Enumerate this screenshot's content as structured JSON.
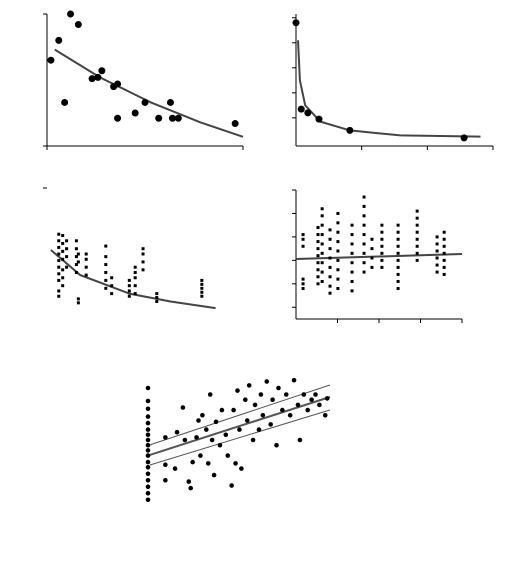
{
  "chart_data": [
    {
      "type": "scatter",
      "color": "#000000",
      "marker": "circle",
      "marker_size": 3.5,
      "axes": true,
      "fit_color": "#444444",
      "xlim": [
        0,
        10
      ],
      "ylim": [
        0,
        10
      ],
      "xticks": [
        0,
        10
      ],
      "yticks": [
        0,
        10
      ],
      "x": [
        0.2,
        0.6,
        0.9,
        1.2,
        1.6,
        2.3,
        2.6,
        2.8,
        3.4,
        3.6,
        3.6,
        4.5,
        5.0,
        5.7,
        6.3,
        6.4,
        6.7,
        9.6
      ],
      "values": [
        6.5,
        8.0,
        3.3,
        10.0,
        9.2,
        5.1,
        5.2,
        5.7,
        4.5,
        4.7,
        2.1,
        2.5,
        3.3,
        2.1,
        3.3,
        2.1,
        2.1,
        1.7
      ],
      "fits": [
        {
          "x": [
            0.4,
            2.7,
            5.3,
            7.8,
            10
          ],
          "values": [
            7.3,
            5.2,
            3.3,
            1.8,
            0.7
          ]
        }
      ]
    },
    {
      "type": "scatter",
      "color": "#000000",
      "marker": "circle",
      "marker_size": 3.5,
      "axes": true,
      "fit_color": "#444444",
      "xlim": [
        0,
        3
      ],
      "ylim": [
        -0.25,
        10.3
      ],
      "xticks": [
        1,
        2,
        3
      ],
      "yticks": [
        2,
        4,
        6,
        8,
        10
      ],
      "x": [
        0,
        0.08,
        0.18,
        0.35,
        0.82,
        2.56
      ],
      "values": [
        9.6,
        2.7,
        2.4,
        1.9,
        1.0,
        0.4
      ],
      "fits": [
        {
          "x": [
            0.03,
            0.06,
            0.14,
            0.37,
            0.82,
            1.59,
            2.81
          ],
          "values": [
            8.2,
            5.0,
            3.0,
            1.7,
            1.0,
            0.6,
            0.5
          ]
        }
      ]
    },
    {
      "type": "scatter",
      "color": "#000000",
      "marker": "square",
      "marker_size": 1.5,
      "axes": false,
      "fit_color": "#444444",
      "xlim": [
        0,
        10
      ],
      "ylim": [
        0,
        10
      ],
      "yticks": [
        10
      ],
      "x": [
        0.6,
        0.6,
        0.6,
        0.6,
        0.6,
        0.6,
        0.6,
        0.6,
        0.6,
        0.6,
        0.8,
        0.8,
        0.8,
        0.8,
        0.8,
        0.8,
        0.8,
        1.0,
        1.0,
        1.0,
        1.0,
        1.5,
        1.5,
        1.5,
        1.5,
        1.5,
        1.6,
        1.6,
        1.6,
        1.6,
        2.0,
        2.0,
        2.0,
        2.0,
        3.0,
        3.0,
        3.0,
        3.0,
        3.0,
        3.0,
        3.3,
        3.3,
        3.3,
        4.2,
        4.2,
        4.2,
        4.2,
        4.5,
        4.5,
        4.5,
        4.5,
        4.5,
        4.9,
        4.9,
        4.9,
        4.9,
        5.6,
        5.6,
        5.6,
        7.9,
        7.9,
        7.9,
        7.9,
        7.9
      ],
      "values": [
        3.0,
        3.5,
        4.0,
        4.5,
        5.0,
        5.5,
        6.0,
        6.5,
        2.2,
        1.8,
        3.2,
        3.8,
        4.6,
        5.2,
        5.8,
        6.4,
        2.6,
        4.0,
        4.8,
        5.4,
        6.0,
        3.6,
        4.2,
        4.8,
        5.4,
        6.0,
        1.3,
        1.6,
        4.4,
        5.0,
        3.4,
        4.0,
        4.6,
        5.0,
        2.4,
        3.0,
        3.6,
        4.2,
        4.8,
        5.6,
        2.0,
        2.6,
        3.2,
        1.8,
        2.2,
        2.6,
        3.0,
        2.0,
        2.6,
        3.2,
        3.6,
        4.0,
        3.8,
        4.4,
        5.0,
        5.4,
        1.4,
        1.7,
        2.0,
        1.8,
        2.1,
        2.4,
        2.7,
        3.0
      ],
      "fits": [
        {
          "x": [
            0.2,
            1.7,
            4.2,
            6.3,
            8.6
          ],
          "values": [
            5.3,
            3.4,
            2.0,
            1.4,
            0.9
          ]
        }
      ]
    },
    {
      "type": "scatter",
      "color": "#000000",
      "marker": "square",
      "marker_size": 1.5,
      "axes": true,
      "fit_color": "#444444",
      "xlim": [
        0,
        4
      ],
      "ylim": [
        0,
        5.5
      ],
      "xticks": [
        1,
        2,
        3,
        4
      ],
      "yticks": [
        0.5,
        1.5,
        2.5,
        3.5,
        4.5,
        5.5
      ],
      "x": [
        0.17,
        0.17,
        0.17,
        0.17,
        0.17,
        0.17,
        0.53,
        0.53,
        0.53,
        0.53,
        0.53,
        0.53,
        0.53,
        0.53,
        0.53,
        0.63,
        0.63,
        0.63,
        0.63,
        0.63,
        0.63,
        0.63,
        0.63,
        0.63,
        0.82,
        0.82,
        0.82,
        0.82,
        0.82,
        0.82,
        0.82,
        0.82,
        1.01,
        1.01,
        1.01,
        1.01,
        1.01,
        1.01,
        1.01,
        1.01,
        1.01,
        1.35,
        1.35,
        1.35,
        1.35,
        1.35,
        1.35,
        1.35,
        1.35,
        1.64,
        1.64,
        1.64,
        1.64,
        1.64,
        1.64,
        1.64,
        1.64,
        1.64,
        1.83,
        1.83,
        1.83,
        1.83,
        2.07,
        2.07,
        2.07,
        2.07,
        2.07,
        2.07,
        2.07,
        2.46,
        2.46,
        2.46,
        2.46,
        2.46,
        2.46,
        2.46,
        2.46,
        2.46,
        2.46,
        2.92,
        2.92,
        2.92,
        2.92,
        2.92,
        2.92,
        2.92,
        2.92,
        3.4,
        3.4,
        3.4,
        3.4,
        3.4,
        3.4,
        3.57,
        3.57,
        3.57,
        3.57,
        3.57,
        3.57,
        3.57
      ],
      "values": [
        1.3,
        1.5,
        1.7,
        3.1,
        3.4,
        3.6,
        1.5,
        1.8,
        2.1,
        2.4,
        2.7,
        3.0,
        3.3,
        3.6,
        3.9,
        1.6,
        2.0,
        2.4,
        2.8,
        3.2,
        3.6,
        4.0,
        4.4,
        4.7,
        1.1,
        1.4,
        1.8,
        2.2,
        2.6,
        3.0,
        3.4,
        3.8,
        1.3,
        1.7,
        2.1,
        2.5,
        2.9,
        3.3,
        3.7,
        4.1,
        4.5,
        1.2,
        1.6,
        2.0,
        2.4,
        2.8,
        3.2,
        3.6,
        4.0,
        2.0,
        2.4,
        2.8,
        3.2,
        3.6,
        4.0,
        4.4,
        4.8,
        5.2,
        2.2,
        2.6,
        3.0,
        3.4,
        2.2,
        2.5,
        2.8,
        3.1,
        3.4,
        3.7,
        4.0,
        1.3,
        1.6,
        1.9,
        2.2,
        2.5,
        2.8,
        3.1,
        3.4,
        3.7,
        4.0,
        2.5,
        2.8,
        3.1,
        3.4,
        3.7,
        4.0,
        4.3,
        4.6,
        2.0,
        2.3,
        2.6,
        2.9,
        3.2,
        3.5,
        1.9,
        2.2,
        2.5,
        2.8,
        3.1,
        3.4,
        3.7
      ],
      "fits": [
        {
          "x": [
            0,
            4
          ],
          "values": [
            2.56,
            2.77
          ]
        }
      ]
    },
    {
      "type": "scatter",
      "color": "#000000",
      "marker": "circle",
      "marker_size": 2.3,
      "axes": false,
      "fit_color": "#555555",
      "xlim": [
        0,
        10
      ],
      "ylim": [
        0,
        10
      ],
      "x": [
        0.41,
        0.41,
        0.41,
        0.41,
        0.41,
        0.41,
        0.41,
        0.41,
        0.41,
        0.41,
        0.41,
        0.41,
        0.41,
        0.41,
        0.41,
        0.41,
        0.41,
        0.41,
        1.3,
        1.3,
        1.3,
        1.8,
        1.9,
        2.2,
        2.3,
        2.5,
        2.6,
        2.7,
        2.9,
        3.0,
        3.1,
        3.2,
        3.4,
        3.5,
        3.6,
        3.7,
        3.8,
        3.9,
        4.1,
        4.2,
        4.4,
        4.5,
        4.7,
        4.8,
        4.9,
        5.0,
        5.1,
        5.2,
        5.4,
        5.5,
        5.6,
        5.8,
        5.9,
        6.1,
        6.2,
        6.3,
        6.5,
        6.7,
        6.8,
        7.0,
        7.1,
        7.3,
        7.5,
        7.7,
        7.9,
        8.1,
        8.2,
        8.4,
        8.6,
        8.8,
        9.0,
        9.2,
        9.5,
        9.6
      ],
      "values": [
        0.4,
        0.9,
        1.4,
        1.9,
        2.4,
        2.9,
        3.3,
        3.8,
        4.2,
        4.6,
        5.0,
        5.4,
        5.8,
        6.3,
        6.8,
        7.4,
        8.0,
        9.0,
        5.2,
        3.1,
        1.9,
        2.8,
        5.6,
        7.5,
        5.0,
        1.8,
        1.3,
        3.3,
        5.2,
        6.5,
        3.8,
        6.9,
        5.8,
        3.2,
        8.5,
        5.0,
        2.3,
        6.4,
        4.6,
        7.3,
        5.4,
        3.8,
        1.5,
        7.3,
        3.2,
        8.8,
        5.8,
        2.8,
        8.1,
        6.5,
        9.2,
        5.0,
        7.7,
        5.8,
        8.5,
        6.9,
        9.5,
        6.2,
        8.1,
        4.6,
        9.0,
        7.3,
        8.5,
        6.9,
        9.6,
        7.7,
        5.0,
        8.5,
        7.3,
        8.1,
        8.5,
        7.7,
        6.9,
        8.2
      ],
      "fits": [
        {
          "x": [
            0.51,
            9.74
          ],
          "values": [
            3.85,
            8.31
          ]
        },
        {
          "x": [
            0.51,
            9.74
          ],
          "values": [
            4.62,
            9.23
          ]
        },
        {
          "x": [
            0.51,
            9.74
          ],
          "values": [
            3.08,
            7.31
          ]
        }
      ]
    }
  ]
}
